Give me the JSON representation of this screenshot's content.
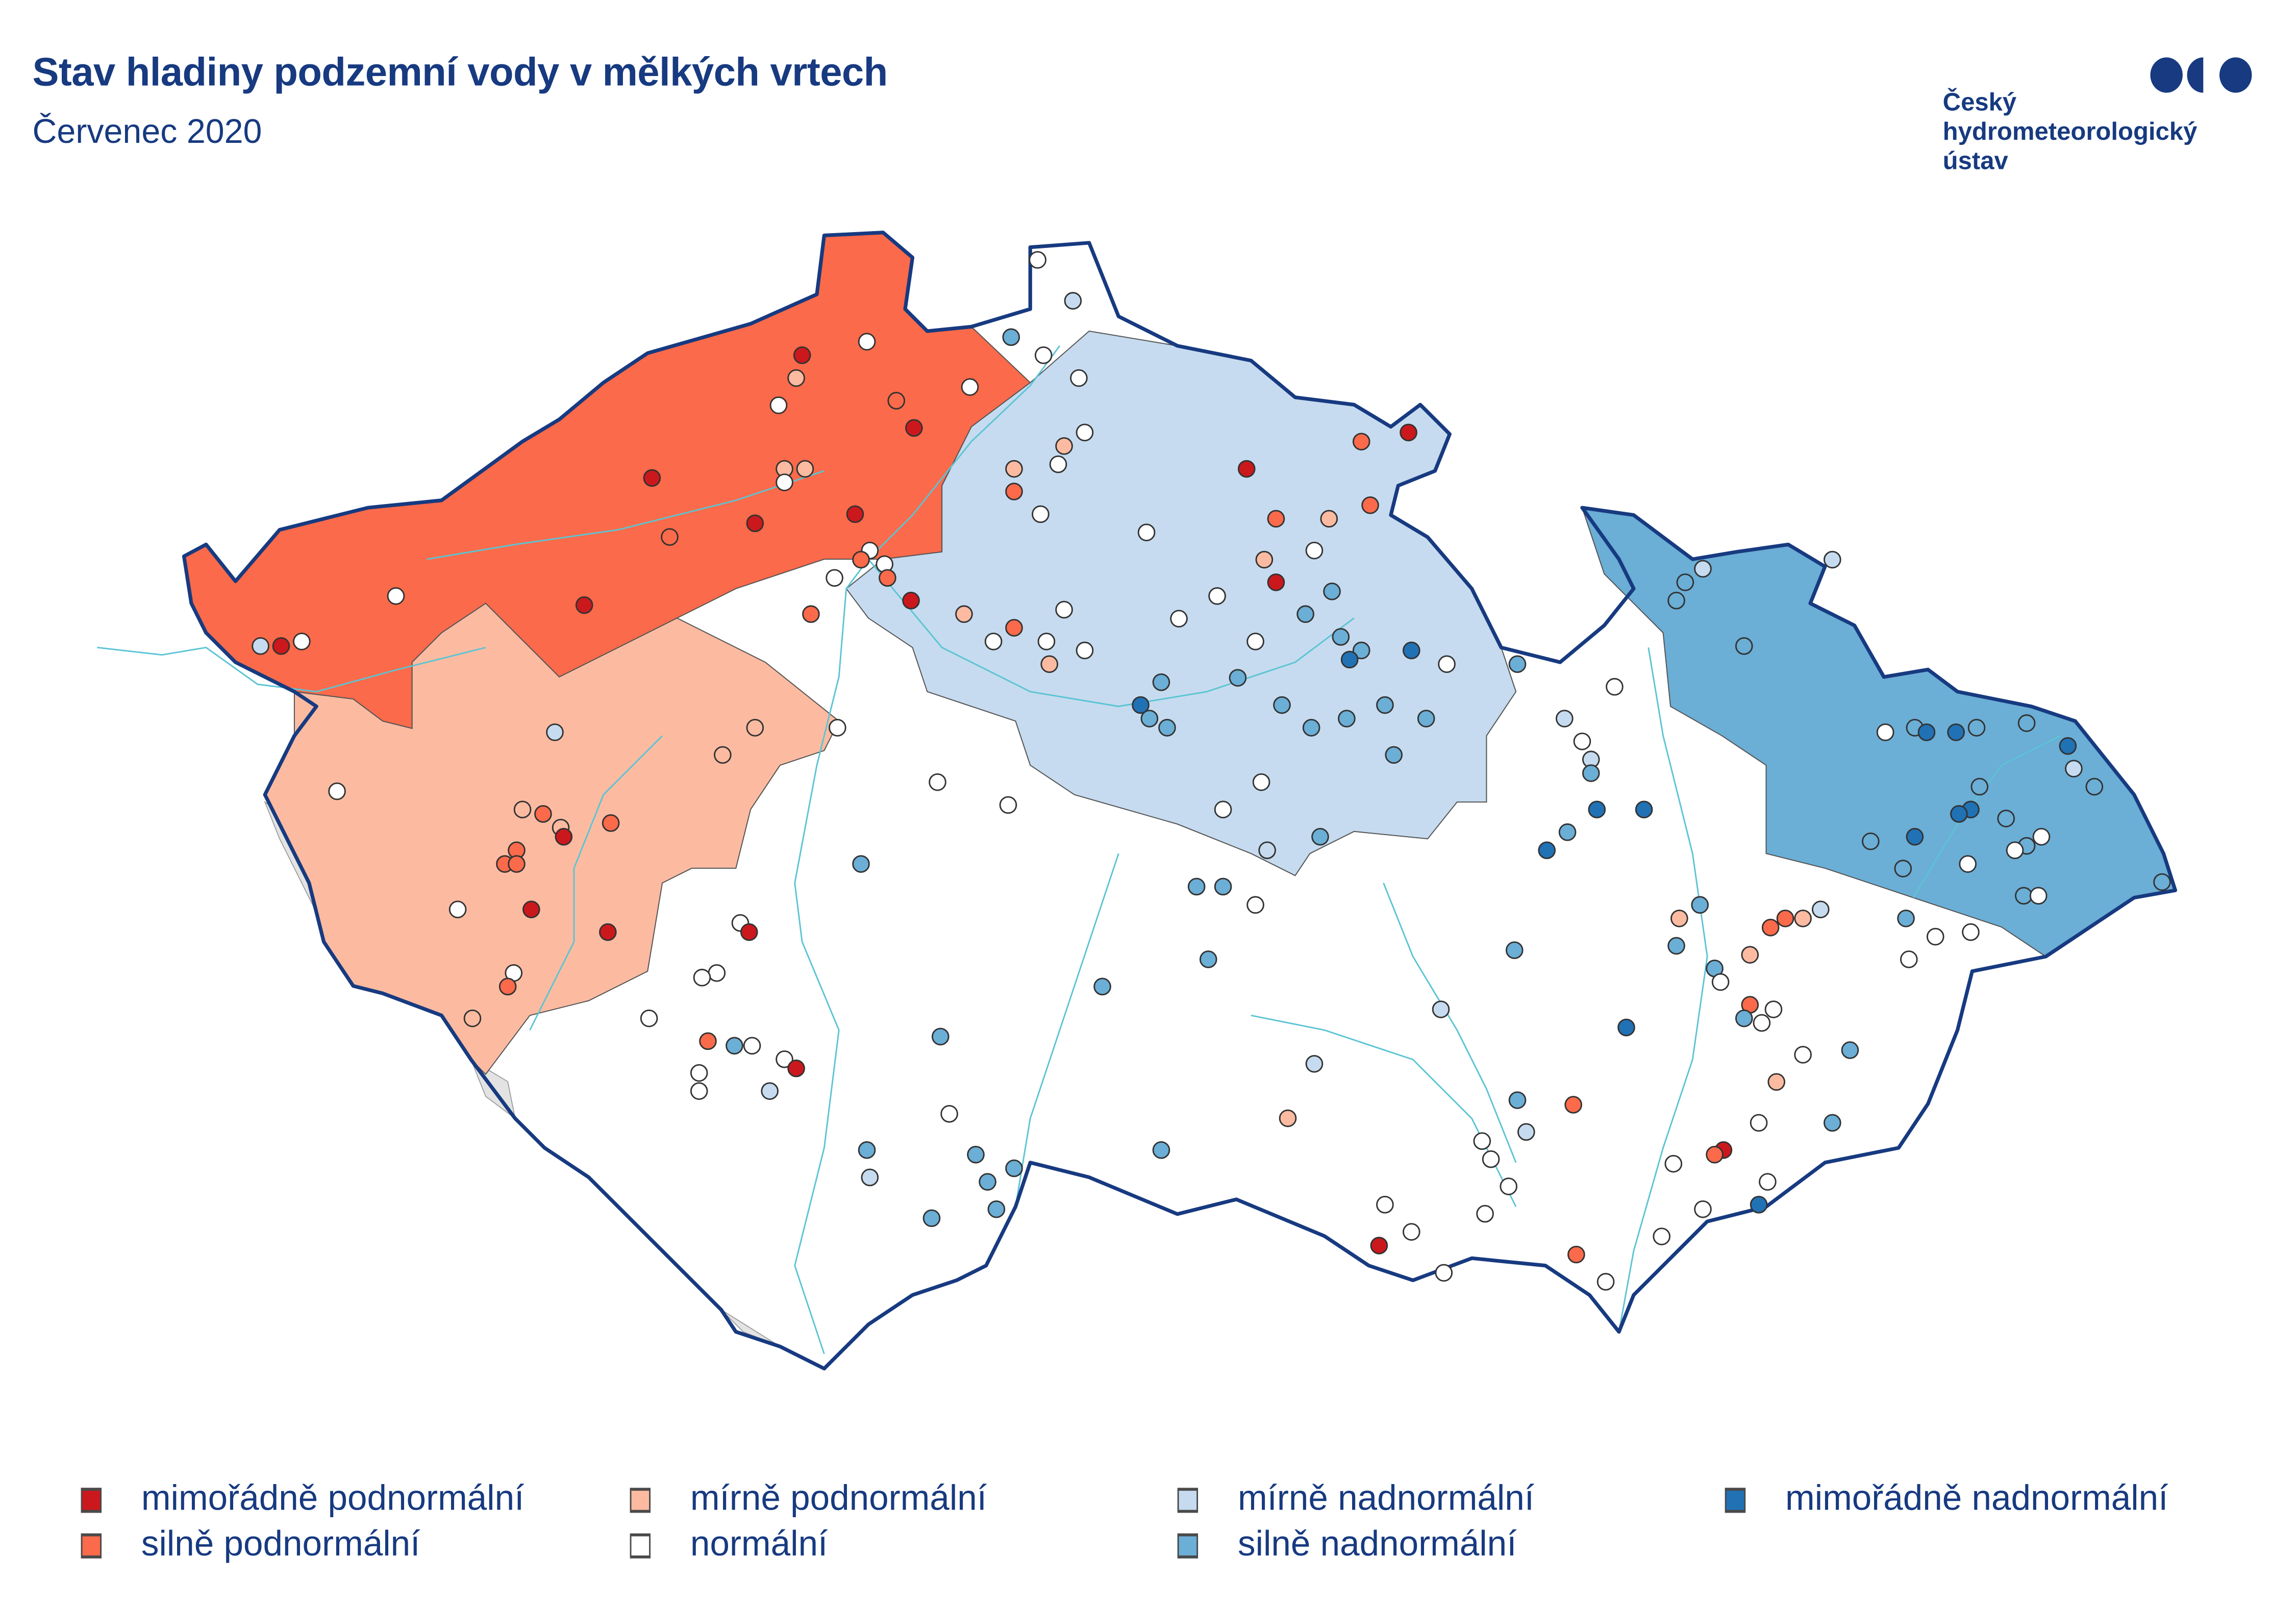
{
  "header": {
    "title": "Stav hladiny podzemní vody v mělkých vrtech",
    "subtitle": "Červenec 2020"
  },
  "logo": {
    "line1": "Český",
    "line2": "hydrometeorologický",
    "line3": "ústav",
    "color": "#173a80"
  },
  "legend": [
    {
      "label": "mimořádně podnormální",
      "color": "#cb181d"
    },
    {
      "label": "silně podnormální",
      "color": "#fb6a4a"
    },
    {
      "label": "mírně podnormální",
      "color": "#fcbba1"
    },
    {
      "label": "normální",
      "color": "#ffffff"
    },
    {
      "label": "mírně nadnormální",
      "color": "#c6dbef"
    },
    {
      "label": "silně nadnormální",
      "color": "#6baed6"
    },
    {
      "label": "mimořádně nadnormální",
      "color": "#2171b5"
    }
  ],
  "colors": {
    "border": "#173a80",
    "rivers": "#5bc4d4",
    "nodata": "#e3e3e3"
  },
  "regions": [
    {
      "id": "nw",
      "category": 2
    },
    {
      "id": "w",
      "category": 3
    },
    {
      "id": "ne",
      "category": 5
    },
    {
      "id": "silesia",
      "category": 6
    }
  ],
  "stations": [
    [
      12.42,
      50.14,
      1
    ],
    [
      12.35,
      50.14,
      5
    ],
    [
      12.49,
      50.15,
      4
    ],
    [
      12.81,
      50.25,
      4
    ],
    [
      13.45,
      50.23,
      1
    ],
    [
      13.68,
      50.51,
      1
    ],
    [
      13.74,
      50.38,
      2
    ],
    [
      14.03,
      50.41,
      1
    ],
    [
      14.11,
      50.67,
      4
    ],
    [
      14.17,
      50.73,
      3
    ],
    [
      14.19,
      50.78,
      1
    ],
    [
      14.41,
      50.81,
      4
    ],
    [
      14.51,
      50.68,
      2
    ],
    [
      14.57,
      50.62,
      1
    ],
    [
      14.76,
      50.71,
      4
    ],
    [
      14.13,
      50.53,
      3
    ],
    [
      14.2,
      50.53,
      3
    ],
    [
      14.13,
      50.5,
      4
    ],
    [
      14.37,
      50.43,
      1
    ],
    [
      14.42,
      50.35,
      4
    ],
    [
      14.39,
      50.33,
      2
    ],
    [
      14.47,
      50.32,
      4
    ],
    [
      14.3,
      50.29,
      4
    ],
    [
      14.48,
      50.29,
      2
    ],
    [
      14.56,
      50.24,
      1
    ],
    [
      14.22,
      50.21,
      2
    ],
    [
      12.61,
      49.82,
      4
    ],
    [
      13.35,
      49.95,
      5
    ],
    [
      13.92,
      49.9,
      3
    ],
    [
      14.03,
      49.96,
      3
    ],
    [
      14.31,
      49.96,
      4
    ],
    [
      13.24,
      49.78,
      3
    ],
    [
      13.31,
      49.77,
      2
    ],
    [
      13.37,
      49.74,
      3
    ],
    [
      13.38,
      49.72,
      1
    ],
    [
      13.54,
      49.75,
      2
    ],
    [
      13.22,
      49.69,
      2
    ],
    [
      13.18,
      49.66,
      2
    ],
    [
      13.22,
      49.66,
      2
    ],
    [
      13.02,
      49.56,
      4
    ],
    [
      13.27,
      49.56,
      1
    ],
    [
      13.53,
      49.51,
      1
    ],
    [
      13.21,
      49.42,
      4
    ],
    [
      13.19,
      49.39,
      2
    ],
    [
      13.07,
      49.32,
      3
    ],
    [
      14.65,
      49.84,
      4
    ],
    [
      14.89,
      49.79,
      4
    ],
    [
      14.39,
      49.66,
      6
    ],
    [
      13.98,
      49.53,
      4
    ],
    [
      14.01,
      49.51,
      1
    ],
    [
      13.9,
      49.42,
      4
    ],
    [
      13.85,
      49.41,
      4
    ],
    [
      13.67,
      49.32,
      4
    ],
    [
      13.87,
      49.27,
      2
    ],
    [
      13.96,
      49.26,
      6
    ],
    [
      14.02,
      49.26,
      4
    ],
    [
      14.13,
      49.23,
      4
    ],
    [
      14.17,
      49.21,
      1
    ],
    [
      13.84,
      49.2,
      4
    ],
    [
      13.84,
      49.16,
      4
    ],
    [
      14.08,
      49.16,
      5
    ],
    [
      14.66,
      49.28,
      6
    ],
    [
      14.69,
      49.11,
      4
    ],
    [
      14.41,
      49.03,
      6
    ],
    [
      14.42,
      48.97,
      5
    ],
    [
      14.78,
      49.02,
      6
    ],
    [
      14.82,
      48.96,
      6
    ],
    [
      14.85,
      48.9,
      6
    ],
    [
      14.91,
      48.99,
      6
    ],
    [
      14.63,
      48.88,
      6
    ],
    [
      15.21,
      49.39,
      6
    ],
    [
      15.41,
      49.03,
      6
    ],
    [
      14.99,
      50.99,
      4
    ],
    [
      15.11,
      50.9,
      5
    ],
    [
      14.9,
      50.82,
      6
    ],
    [
      15.01,
      50.78,
      4
    ],
    [
      15.13,
      50.73,
      4
    ],
    [
      15.15,
      50.61,
      4
    ],
    [
      15.08,
      50.58,
      3
    ],
    [
      15.06,
      50.54,
      4
    ],
    [
      14.91,
      50.53,
      3
    ],
    [
      14.91,
      50.48,
      2
    ],
    [
      15.0,
      50.43,
      4
    ],
    [
      14.74,
      50.21,
      3
    ],
    [
      14.84,
      50.15,
      4
    ],
    [
      14.91,
      50.18,
      2
    ],
    [
      15.02,
      50.15,
      4
    ],
    [
      15.03,
      50.1,
      3
    ],
    [
      15.08,
      50.22,
      4
    ],
    [
      15.15,
      50.13,
      4
    ],
    [
      15.36,
      50.39,
      4
    ],
    [
      15.47,
      50.2,
      4
    ],
    [
      15.6,
      50.25,
      4
    ],
    [
      15.7,
      50.53,
      1
    ],
    [
      15.8,
      50.42,
      2
    ],
    [
      15.76,
      50.33,
      3
    ],
    [
      15.8,
      50.28,
      1
    ],
    [
      15.73,
      50.15,
      4
    ],
    [
      15.67,
      50.07,
      6
    ],
    [
      15.93,
      50.35,
      4
    ],
    [
      15.98,
      50.42,
      3
    ],
    [
      16.09,
      50.59,
      2
    ],
    [
      16.25,
      50.61,
      1
    ],
    [
      16.12,
      50.45,
      2
    ],
    [
      15.9,
      50.21,
      6
    ],
    [
      15.99,
      50.26,
      6
    ],
    [
      16.02,
      50.16,
      6
    ],
    [
      16.09,
      50.13,
      6
    ],
    [
      16.05,
      50.11,
      7
    ],
    [
      16.26,
      50.13,
      7
    ],
    [
      16.38,
      50.1,
      4
    ],
    [
      16.17,
      50.01,
      6
    ],
    [
      16.31,
      49.98,
      6
    ],
    [
      15.41,
      50.06,
      6
    ],
    [
      15.34,
      50.01,
      7
    ],
    [
      15.37,
      49.98,
      6
    ],
    [
      15.43,
      49.96,
      6
    ],
    [
      15.82,
      50.01,
      6
    ],
    [
      15.92,
      49.96,
      6
    ],
    [
      16.04,
      49.98,
      6
    ],
    [
      16.2,
      49.9,
      6
    ],
    [
      15.75,
      49.84,
      4
    ],
    [
      15.62,
      49.78,
      4
    ],
    [
      15.95,
      49.72,
      6
    ],
    [
      15.77,
      49.69,
      5
    ],
    [
      15.53,
      49.61,
      6
    ],
    [
      15.62,
      49.61,
      6
    ],
    [
      15.73,
      49.57,
      4
    ],
    [
      15.57,
      49.45,
      6
    ],
    [
      15.93,
      49.22,
      5
    ],
    [
      15.84,
      49.1,
      3
    ],
    [
      16.36,
      49.34,
      5
    ],
    [
      16.62,
      50.1,
      6
    ],
    [
      16.95,
      50.05,
      4
    ],
    [
      16.78,
      49.98,
      5
    ],
    [
      16.84,
      49.93,
      4
    ],
    [
      16.87,
      49.89,
      5
    ],
    [
      16.87,
      49.86,
      6
    ],
    [
      16.89,
      49.78,
      7
    ],
    [
      17.05,
      49.78,
      7
    ],
    [
      16.79,
      49.73,
      6
    ],
    [
      16.72,
      49.69,
      7
    ],
    [
      16.61,
      49.47,
      6
    ],
    [
      16.99,
      49.3,
      7
    ],
    [
      17.17,
      49.54,
      3
    ],
    [
      17.24,
      49.57,
      6
    ],
    [
      17.16,
      49.48,
      6
    ],
    [
      17.29,
      49.43,
      6
    ],
    [
      17.31,
      49.4,
      4
    ],
    [
      17.41,
      49.46,
      3
    ],
    [
      17.41,
      49.35,
      2
    ],
    [
      17.39,
      49.32,
      6
    ],
    [
      17.45,
      49.31,
      4
    ],
    [
      17.49,
      49.34,
      4
    ],
    [
      17.48,
      49.52,
      2
    ],
    [
      17.53,
      49.54,
      2
    ],
    [
      17.59,
      49.54,
      3
    ],
    [
      17.65,
      49.56,
      5
    ],
    [
      17.59,
      49.24,
      4
    ],
    [
      17.75,
      49.25,
      6
    ],
    [
      17.5,
      49.18,
      3
    ],
    [
      17.44,
      49.09,
      4
    ],
    [
      17.69,
      49.09,
      6
    ],
    [
      17.32,
      49.03,
      1
    ],
    [
      17.29,
      49.02,
      2
    ],
    [
      17.47,
      48.96,
      4
    ],
    [
      17.15,
      49.0,
      4
    ],
    [
      17.44,
      48.91,
      7
    ],
    [
      17.25,
      48.9,
      4
    ],
    [
      17.11,
      48.84,
      4
    ],
    [
      16.92,
      48.74,
      4
    ],
    [
      16.82,
      48.8,
      2
    ],
    [
      16.81,
      49.13,
      2
    ],
    [
      16.62,
      49.14,
      6
    ],
    [
      16.65,
      49.07,
      5
    ],
    [
      16.5,
      49.05,
      4
    ],
    [
      16.53,
      49.01,
      4
    ],
    [
      16.59,
      48.95,
      4
    ],
    [
      16.51,
      48.89,
      4
    ],
    [
      16.15,
      48.82,
      1
    ],
    [
      16.17,
      48.91,
      4
    ],
    [
      16.26,
      48.85,
      4
    ],
    [
      16.37,
      48.76,
      4
    ],
    [
      17.95,
      49.45,
      4
    ],
    [
      17.94,
      49.54,
      6
    ],
    [
      18.04,
      49.5,
      4
    ],
    [
      18.16,
      49.51,
      4
    ],
    [
      17.25,
      50.31,
      5
    ],
    [
      17.19,
      50.28,
      6
    ],
    [
      17.16,
      50.24,
      6
    ],
    [
      17.69,
      50.33,
      5
    ],
    [
      17.39,
      50.14,
      6
    ],
    [
      17.87,
      49.95,
      4
    ],
    [
      17.97,
      49.96,
      6
    ],
    [
      18.01,
      49.95,
      7
    ],
    [
      18.11,
      49.95,
      7
    ],
    [
      18.18,
      49.96,
      6
    ],
    [
      18.35,
      49.97,
      6
    ],
    [
      18.49,
      49.92,
      7
    ],
    [
      18.51,
      49.87,
      5
    ],
    [
      18.58,
      49.83,
      6
    ],
    [
      18.19,
      49.83,
      6
    ],
    [
      18.16,
      49.78,
      7
    ],
    [
      18.12,
      49.77,
      7
    ],
    [
      17.97,
      49.72,
      7
    ],
    [
      17.82,
      49.71,
      6
    ],
    [
      17.93,
      49.65,
      6
    ],
    [
      18.28,
      49.76,
      6
    ],
    [
      18.4,
      49.72,
      4
    ],
    [
      18.35,
      49.7,
      6
    ],
    [
      18.31,
      49.69,
      4
    ],
    [
      18.15,
      49.66,
      4
    ],
    [
      18.34,
      49.59,
      6
    ],
    [
      18.39,
      49.59,
      4
    ],
    [
      18.81,
      49.62,
      6
    ]
  ]
}
